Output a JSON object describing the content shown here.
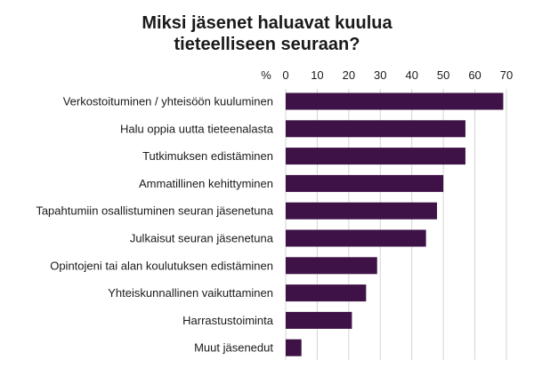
{
  "chart_data": {
    "type": "bar",
    "orientation": "horizontal",
    "title_lines": [
      "Miksi jäsenet haluavat kuulua",
      "tieteelliseen seuraan?"
    ],
    "x_unit_label": "%",
    "xlim": [
      0,
      70
    ],
    "x_ticks": [
      "0",
      "10",
      "20",
      "30",
      "40",
      "50",
      "60",
      "70"
    ],
    "x_tick_values": [
      0,
      10,
      20,
      30,
      40,
      50,
      60,
      70
    ],
    "grid": "vertical",
    "categories": [
      "Verkostoituminen / yhteisöön kuuluminen",
      "Halu oppia uutta tieteenalasta",
      "Tutkimuksen edistäminen",
      "Ammatillinen kehittyminen",
      "Tapahtumiin osallistuminen seuran jäsenetuna",
      "Julkaisut seuran jäsenetuna",
      "Opintojeni tai alan koulutuksen edistäminen",
      "Yhteiskunnallinen vaikuttaminen",
      "Harrastustoiminta",
      "Muut jäsenedut"
    ],
    "values": [
      69,
      57,
      57,
      50,
      48,
      44.5,
      29,
      25.5,
      21,
      5
    ],
    "bar_color": "#3e1247",
    "grid_color": "#d4d4d4"
  }
}
